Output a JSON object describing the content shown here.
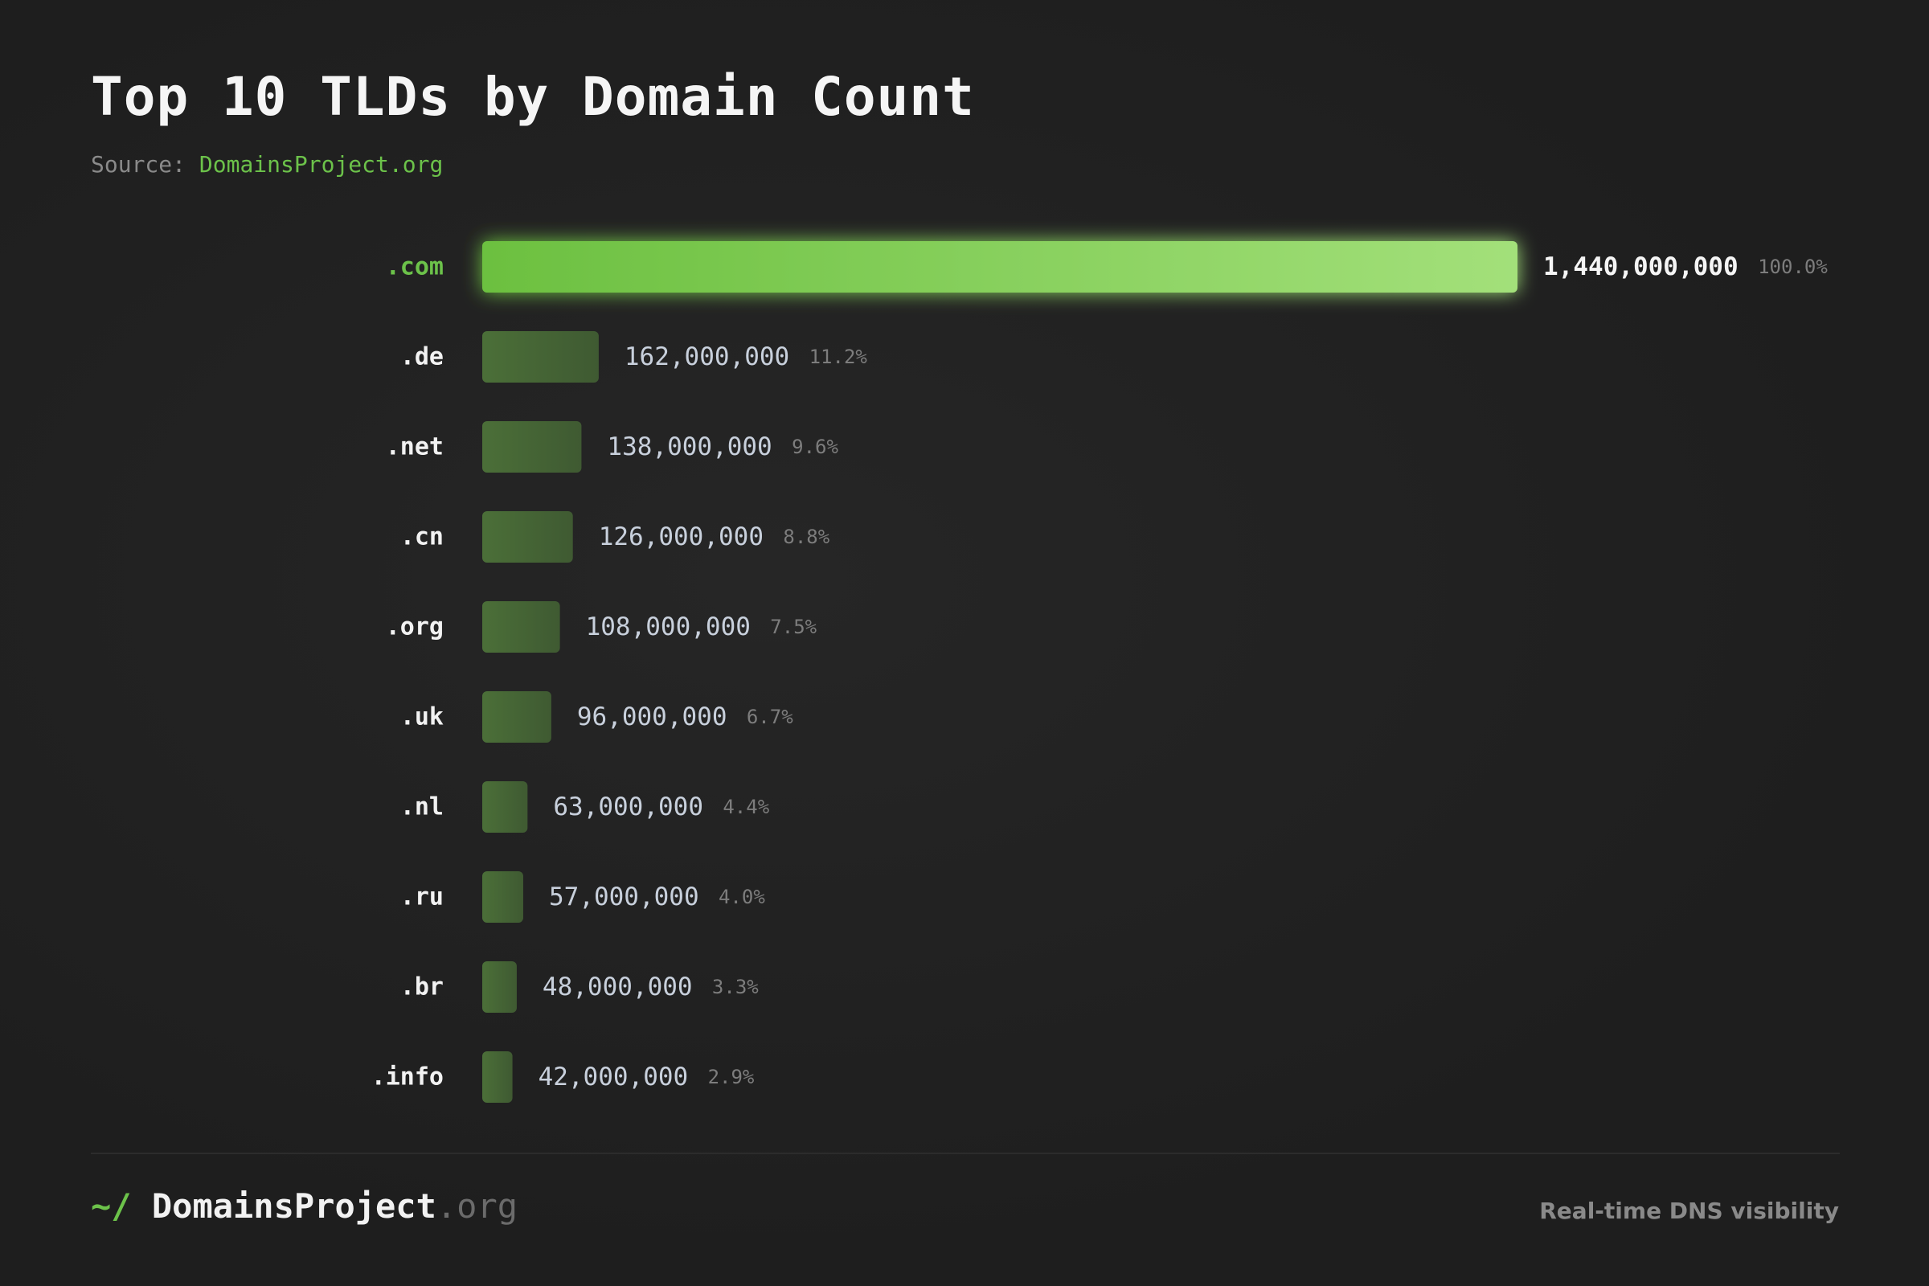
{
  "header": {
    "title": "Top 10 TLDs by Domain Count",
    "source_label": "Source:",
    "source_link": "DomainsProject.org"
  },
  "chart_data": {
    "type": "bar",
    "orientation": "horizontal",
    "title": "Top 10 TLDs by Domain Count",
    "xlabel": "",
    "ylabel": "",
    "grid": false,
    "categories": [
      ".com",
      ".de",
      ".net",
      ".cn",
      ".org",
      ".uk",
      ".nl",
      ".ru",
      ".br",
      ".info"
    ],
    "values": [
      1440000000,
      162000000,
      138000000,
      126000000,
      108000000,
      96000000,
      63000000,
      57000000,
      48000000,
      42000000
    ],
    "value_labels": [
      "1,440,000,000",
      "162,000,000",
      "138,000,000",
      "126,000,000",
      "108,000,000",
      "96,000,000",
      "63,000,000",
      "57,000,000",
      "48,000,000",
      "42,000,000"
    ],
    "percent_labels": [
      "100.0%",
      "11.2%",
      "9.6%",
      "8.8%",
      "7.5%",
      "6.7%",
      "4.4%",
      "4.0%",
      "3.3%",
      "2.9%"
    ],
    "xlim": [
      0,
      1440000000
    ],
    "colors": {
      "highlight_start": "#6cc040",
      "highlight_end": "#a3e07a",
      "bar": "#4b6f38",
      "bar_dark": "#3f5a32",
      "highlight_label": "#6cc24a",
      "label": "#f2f2f2",
      "value": "#c8d0dc",
      "value_highlight": "#f5f5f5",
      "percent": "#7d7d7d"
    }
  },
  "footer": {
    "prompt": "~/",
    "brand_name": "DomainsProject",
    "brand_tld": ".org",
    "tagline": "Real-time DNS visibility"
  }
}
